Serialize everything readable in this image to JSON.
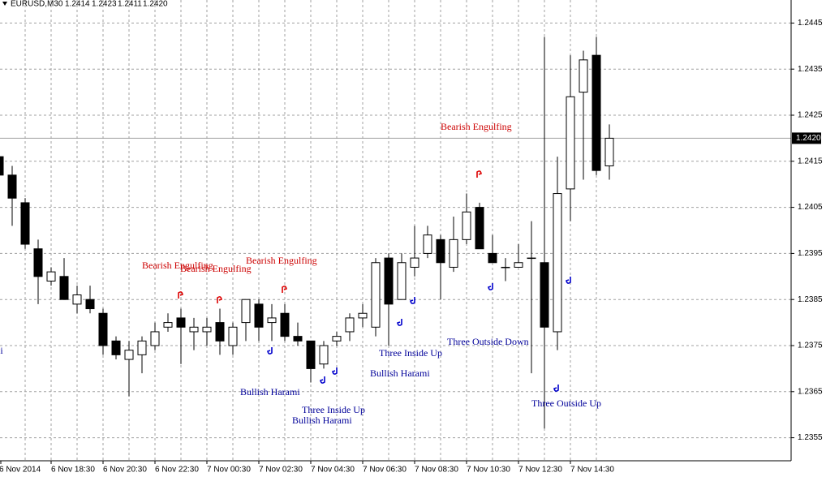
{
  "chart_data": {
    "type": "candlestick",
    "title": "EURUSD,M30",
    "header_values": [
      "1.2414",
      "1.2423",
      "1.2411",
      "1.2420"
    ],
    "categories": [
      "6 Nov 2014",
      null,
      null,
      null,
      "6 Nov 18:30",
      null,
      null,
      null,
      "6 Nov 20:30",
      null,
      null,
      null,
      "6 Nov 22:30",
      null,
      null,
      null,
      "7 Nov 00:30",
      null,
      null,
      null,
      "7 Nov 02:30",
      null,
      null,
      null,
      "7 Nov 04:30",
      null,
      null,
      null,
      "7 Nov 06:30",
      null,
      null,
      null,
      "7 Nov 08:30",
      null,
      null,
      null,
      "7 Nov 10:30",
      null,
      null,
      null,
      "7 Nov 12:30",
      null,
      null,
      null,
      "7 Nov 14:30",
      null,
      null,
      null
    ],
    "open": [
      1.2416,
      1.2412,
      1.2406,
      1.2396,
      1.2389,
      1.239,
      1.2384,
      1.2385,
      1.2382,
      1.2376,
      1.2372,
      1.2373,
      1.2375,
      1.2379,
      1.2381,
      1.2378,
      1.2378,
      1.238,
      1.2375,
      1.238,
      1.2384,
      1.238,
      1.2382,
      1.2377,
      1.2376,
      1.2371,
      1.2376,
      1.2378,
      1.2381,
      1.2379,
      1.2394,
      1.2385,
      1.2392,
      1.2395,
      1.2398,
      1.2392,
      1.2398,
      1.2405,
      1.2395,
      1.2392,
      1.2392,
      1.2394,
      1.2393,
      1.2378,
      1.2409,
      1.243,
      1.2438,
      1.2414
    ],
    "high": [
      1.2417,
      1.2414,
      1.2407,
      1.2398,
      1.2392,
      1.2394,
      1.2388,
      1.2388,
      1.2383,
      1.2377,
      1.2376,
      1.2377,
      1.238,
      1.2382,
      1.2383,
      1.2381,
      1.2381,
      1.2383,
      1.238,
      1.2385,
      1.2385,
      1.2384,
      1.2384,
      1.238,
      1.2376,
      1.2376,
      1.2378,
      1.2382,
      1.2384,
      1.2394,
      1.2395,
      1.2395,
      1.2401,
      1.2401,
      1.2399,
      1.2403,
      1.2408,
      1.2406,
      1.2399,
      1.2394,
      1.2397,
      1.2402,
      1.2442,
      1.2416,
      1.2438,
      1.2439,
      1.2442,
      1.2423
    ],
    "low": [
      1.241,
      1.2401,
      1.2396,
      1.2384,
      1.2388,
      1.2385,
      1.2382,
      1.2382,
      1.2373,
      1.2372,
      1.2364,
      1.2369,
      1.2374,
      1.2378,
      1.2371,
      1.2374,
      1.2375,
      1.2373,
      1.2373,
      1.2376,
      1.2376,
      1.2376,
      1.2376,
      1.2375,
      1.2367,
      1.237,
      1.2375,
      1.2376,
      1.2379,
      1.2377,
      1.2375,
      1.2385,
      1.239,
      1.2394,
      1.2385,
      1.2391,
      1.2397,
      1.2396,
      1.2393,
      1.2389,
      1.2392,
      1.2369,
      1.2357,
      1.2374,
      1.2402,
      1.2411,
      1.2412,
      1.2411
    ],
    "close": [
      1.2412,
      1.2407,
      1.2397,
      1.239,
      1.2391,
      1.2385,
      1.2386,
      1.2383,
      1.2375,
      1.2373,
      1.2374,
      1.2376,
      1.2378,
      1.238,
      1.2379,
      1.2379,
      1.2379,
      1.2376,
      1.2379,
      1.2385,
      1.2379,
      1.2381,
      1.2377,
      1.2376,
      1.237,
      1.2375,
      1.2377,
      1.2381,
      1.2382,
      1.2393,
      1.2384,
      1.2393,
      1.2394,
      1.2399,
      1.2393,
      1.2398,
      1.2404,
      1.2396,
      1.2393,
      1.2392,
      1.2393,
      1.2394,
      1.2379,
      1.2408,
      1.2429,
      1.2437,
      1.2413,
      1.242
    ],
    "ylim": [
      1.235,
      1.245
    ],
    "yticks": [
      1.2445,
      1.2435,
      1.2425,
      1.2415,
      1.2405,
      1.2395,
      1.2385,
      1.2375,
      1.2365,
      1.2355
    ],
    "current_price": {
      "value": 1.242,
      "label": "1.2420"
    },
    "grid": true,
    "annotations": [
      {
        "text": "Bearish Engulfing",
        "color": "#cc0000"
      },
      {
        "text": "Bearish Engulfing",
        "color": "#cc0000"
      },
      {
        "text": "Bearish Engulfing",
        "color": "#cc0000"
      },
      {
        "text": "Bearish Engulfing",
        "color": "#cc0000"
      },
      {
        "text": "Bullish Harami",
        "color": "#000099"
      },
      {
        "text": "Bullish Harami",
        "color": "#000099"
      },
      {
        "text": "Three Inside Up",
        "color": "#000099"
      },
      {
        "text": "Bullish Harami",
        "color": "#000099"
      },
      {
        "text": "Three Inside Up",
        "color": "#000099"
      },
      {
        "text": "Bullish Harami",
        "color": "#000099"
      },
      {
        "text": "Three Outside Down",
        "color": "#000099"
      },
      {
        "text": "Three Outside Up",
        "color": "#000099"
      }
    ]
  }
}
